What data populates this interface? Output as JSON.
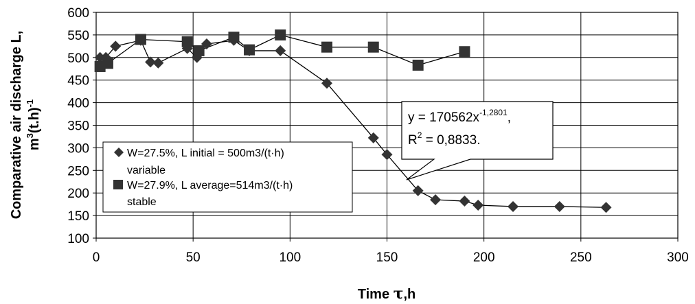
{
  "chart_data": {
    "type": "scatter",
    "xlabel_text": "Time ",
    "xlabel_symbol": "τ",
    "xlabel_unit": ",h",
    "ylabel_line1": "Comparative air discharge L,",
    "ylabel_line2_base": "m",
    "ylabel_line2_sup1": "3",
    "ylabel_line2_mid": "(t.h)",
    "ylabel_line2_sup2": "-1",
    "xlim": [
      0,
      300
    ],
    "ylim": [
      100,
      600
    ],
    "xticks": [
      0,
      50,
      100,
      150,
      200,
      250,
      300
    ],
    "yticks": [
      100,
      150,
      200,
      250,
      300,
      350,
      400,
      450,
      500,
      550,
      600
    ],
    "grid": true,
    "series": [
      {
        "name_line1": "W=27.5%, L initial = 500m3/(t·h)",
        "name_line2": "variable",
        "marker": "diamond",
        "color": "#333333",
        "x": [
          2,
          5,
          10,
          23,
          28,
          32,
          47,
          52,
          57,
          71,
          79,
          95,
          119,
          143,
          150,
          166,
          175,
          190,
          197,
          215,
          239,
          263
        ],
        "y": [
          500,
          500,
          525,
          538,
          490,
          488,
          520,
          500,
          530,
          538,
          515,
          515,
          443,
          322,
          285,
          205,
          185,
          182,
          173,
          170,
          170,
          168
        ]
      },
      {
        "name_line1": "W=27.9%, L average=514m3/(t·h)",
        "name_line2": "stable",
        "marker": "square",
        "color": "#333333",
        "x": [
          2,
          6,
          23,
          47,
          53,
          71,
          79,
          95,
          119,
          143,
          166,
          190
        ],
        "y": [
          480,
          487,
          540,
          535,
          515,
          545,
          517,
          550,
          523,
          523,
          483,
          513
        ]
      }
    ],
    "annotation": {
      "line1_a": "y = 170562x",
      "line1_sup": "-1,2801",
      "line1_b": ",",
      "line2_a": "R",
      "line2_sup": "2",
      "line2_b": " = 0,8833."
    }
  }
}
